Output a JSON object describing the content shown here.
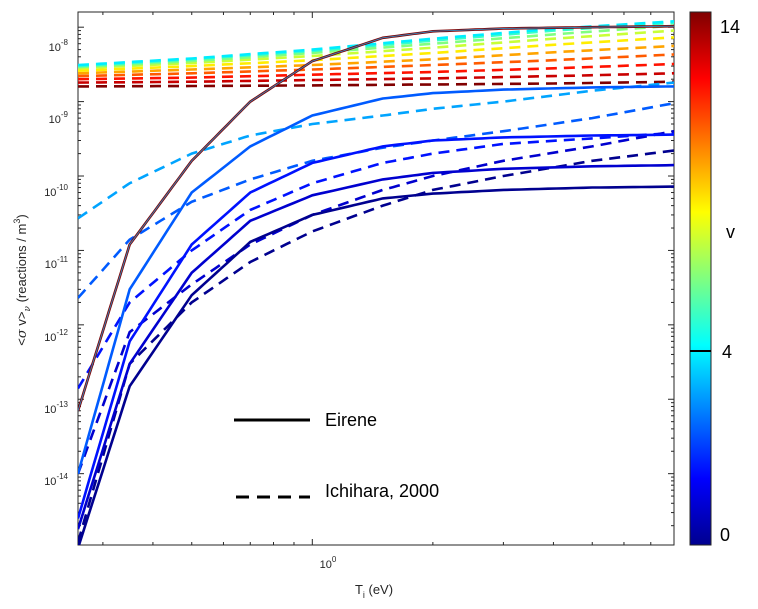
{
  "chart_data": {
    "type": "line",
    "ylabel_parts": {
      "prefix": "<",
      "sigma": "σ",
      "v": " v>",
      "nu": "ν",
      "suffix": " (reactions / m",
      "exp": "3",
      "close": ")"
    },
    "xlabel_parts": {
      "base": "T",
      "sub": "i",
      "rest": " (eV)"
    },
    "xscale": "log",
    "yscale": "log",
    "xlim": [
      0.26,
      8.0
    ],
    "ylim": [
      1.1e-15,
      1.6e-08
    ],
    "x_tick_labels": [
      {
        "value": 1.0,
        "base": "10",
        "exp": "0"
      }
    ],
    "y_tick_labels": [
      {
        "value": 1e-14,
        "base": "10",
        "exp": "-14"
      },
      {
        "value": 1e-13,
        "base": "10",
        "exp": "-13"
      },
      {
        "value": 1e-12,
        "base": "10",
        "exp": "-12"
      },
      {
        "value": 1e-11,
        "base": "10",
        "exp": "-11"
      },
      {
        "value": 1e-10,
        "base": "10",
        "exp": "-10"
      },
      {
        "value": 1e-09,
        "base": "10",
        "exp": "-9"
      },
      {
        "value": 1e-08,
        "base": "10",
        "exp": "-8"
      }
    ],
    "legend": {
      "position": "lower-center",
      "entries": [
        {
          "label": "Eirene",
          "style": "solid"
        },
        {
          "label": "Ichihara, 2000",
          "style": "dashed"
        }
      ]
    },
    "colorbar": {
      "label": "v",
      "min": 0,
      "max": 14,
      "tick_labels": [
        "0",
        "4",
        "14"
      ],
      "marker_value": 4
    },
    "eirene_series": [
      {
        "v": 0,
        "x": [
          0.26,
          0.35,
          0.5,
          0.7,
          1.0,
          1.5,
          2.0,
          3.0,
          5.0,
          8.0
        ],
        "y": [
          1e-15,
          1.5e-13,
          2.5e-12,
          1.3e-11,
          3e-11,
          5e-11,
          5.8e-11,
          6.5e-11,
          7e-11,
          7.2e-11
        ]
      },
      {
        "v": 1,
        "x": [
          0.26,
          0.35,
          0.5,
          0.7,
          1.0,
          1.5,
          2.0,
          3.0,
          5.0,
          8.0
        ],
        "y": [
          1.8e-15,
          3e-13,
          5e-12,
          2.5e-11,
          5.5e-11,
          9e-11,
          1.1e-10,
          1.25e-10,
          1.35e-10,
          1.4e-10
        ]
      },
      {
        "v": 2,
        "x": [
          0.26,
          0.35,
          0.5,
          0.7,
          1.0,
          1.5,
          2.0,
          3.0,
          5.0,
          8.0
        ],
        "y": [
          2.5e-15,
          6e-13,
          1.2e-11,
          6e-11,
          1.5e-10,
          2.5e-10,
          3e-10,
          3.3e-10,
          3.5e-10,
          3.6e-10
        ]
      },
      {
        "v": 3,
        "x": [
          0.26,
          0.35,
          0.5,
          0.7,
          1.0,
          1.5,
          2.0,
          3.0,
          5.0,
          8.0
        ],
        "y": [
          1e-14,
          3e-12,
          6e-11,
          2.5e-10,
          6.5e-10,
          1.1e-09,
          1.3e-09,
          1.45e-09,
          1.55e-09,
          1.6e-09
        ]
      },
      {
        "v": 14,
        "x": [
          0.26,
          0.35,
          0.5,
          0.7,
          1.0,
          1.5,
          2.0,
          3.0,
          5.0,
          8.0
        ],
        "y": [
          7e-14,
          1.2e-11,
          1.6e-10,
          1e-09,
          3.5e-09,
          7.2e-09,
          8.8e-09,
          9.6e-09,
          1e-08,
          1.03e-08
        ]
      }
    ],
    "ichihara_series": [
      {
        "v": 0,
        "x": [
          0.26,
          0.35,
          0.5,
          0.7,
          1.0,
          1.5,
          2.0,
          3.0,
          5.0,
          8.0
        ],
        "y": [
          1.2e-15,
          3e-13,
          2e-12,
          7e-12,
          1.8e-11,
          4e-11,
          6.5e-11,
          1e-10,
          1.6e-10,
          2.2e-10
        ]
      },
      {
        "v": 1,
        "x": [
          0.26,
          0.35,
          0.5,
          0.7,
          1.0,
          1.5,
          2.0,
          3.0,
          5.0,
          8.0
        ],
        "y": [
          1e-14,
          8e-13,
          3.5e-12,
          1.2e-11,
          3e-11,
          6.5e-11,
          1e-10,
          1.6e-10,
          2.5e-10,
          4e-10
        ]
      },
      {
        "v": 2,
        "x": [
          0.26,
          0.35,
          0.5,
          0.7,
          1.0,
          1.5,
          2.0,
          3.0,
          5.0,
          8.0
        ],
        "y": [
          1.4e-13,
          2e-12,
          1e-11,
          3.5e-11,
          8e-11,
          1.5e-10,
          2e-10,
          2.7e-10,
          3.2e-10,
          3.8e-10
        ]
      },
      {
        "v": 3,
        "x": [
          0.26,
          0.35,
          0.5,
          0.7,
          1.0,
          1.5,
          2.0,
          3.0,
          5.0,
          8.0
        ],
        "y": [
          2.3e-12,
          1.4e-11,
          4.5e-11,
          9e-11,
          1.6e-10,
          2.4e-10,
          3e-10,
          4e-10,
          6e-10,
          9.5e-10
        ]
      },
      {
        "v": 4,
        "x": [
          0.26,
          0.35,
          0.5,
          0.7,
          1.0,
          1.5,
          2.0,
          3.0,
          5.0,
          8.0
        ],
        "y": [
          2.7e-11,
          8e-11,
          2e-10,
          3.5e-10,
          5e-10,
          6.5e-10,
          8e-10,
          1e-09,
          1.4e-09,
          1.8e-09
        ]
      },
      {
        "v": 5,
        "x": [
          0.26,
          0.5,
          1.0,
          2.0,
          4.0,
          8.0
        ],
        "y": [
          3.1e-09,
          3.8e-09,
          5e-09,
          7e-09,
          9.5e-09,
          1.2e-08
        ]
      },
      {
        "v": 6,
        "x": [
          0.26,
          0.5,
          1.0,
          2.0,
          4.0,
          8.0
        ],
        "y": [
          3e-09,
          3.7e-09,
          4.8e-09,
          6.6e-09,
          9e-09,
          1.15e-08
        ]
      },
      {
        "v": 7,
        "x": [
          0.26,
          0.5,
          1.0,
          2.0,
          4.0,
          8.0
        ],
        "y": [
          2.9e-09,
          3.5e-09,
          4.5e-09,
          6e-09,
          8e-09,
          1.05e-08
        ]
      },
      {
        "v": 8,
        "x": [
          0.26,
          0.5,
          1.0,
          2.0,
          4.0,
          8.0
        ],
        "y": [
          2.8e-09,
          3.3e-09,
          4.1e-09,
          5.3e-09,
          7e-09,
          9e-09
        ]
      },
      {
        "v": 9,
        "x": [
          0.26,
          0.5,
          1.0,
          2.0,
          4.0,
          8.0
        ],
        "y": [
          2.6e-09,
          3e-09,
          3.6e-09,
          4.5e-09,
          5.8e-09,
          7.3e-09
        ]
      },
      {
        "v": 10,
        "x": [
          0.26,
          0.5,
          1.0,
          2.0,
          4.0,
          8.0
        ],
        "y": [
          2.4e-09,
          2.7e-09,
          3.1e-09,
          3.7e-09,
          4.6e-09,
          5.6e-09
        ]
      },
      {
        "v": 11,
        "x": [
          0.26,
          0.5,
          1.0,
          2.0,
          4.0,
          8.0
        ],
        "y": [
          2.2e-09,
          2.4e-09,
          2.7e-09,
          3.1e-09,
          3.6e-09,
          4.3e-09
        ]
      },
      {
        "v": 12,
        "x": [
          0.26,
          0.5,
          1.0,
          2.0,
          4.0,
          8.0
        ],
        "y": [
          2e-09,
          2.1e-09,
          2.3e-09,
          2.5e-09,
          2.8e-09,
          3.2e-09
        ]
      },
      {
        "v": 13,
        "x": [
          0.26,
          0.5,
          1.0,
          2.0,
          4.0,
          8.0
        ],
        "y": [
          1.8e-09,
          1.85e-09,
          1.95e-09,
          2.05e-09,
          2.2e-09,
          2.4e-09
        ]
      },
      {
        "v": 14,
        "x": [
          0.26,
          0.5,
          1.0,
          2.0,
          4.0,
          8.0
        ],
        "y": [
          1.6e-09,
          1.62e-09,
          1.65e-09,
          1.7e-09,
          1.75e-09,
          1.85e-09
        ]
      }
    ]
  }
}
